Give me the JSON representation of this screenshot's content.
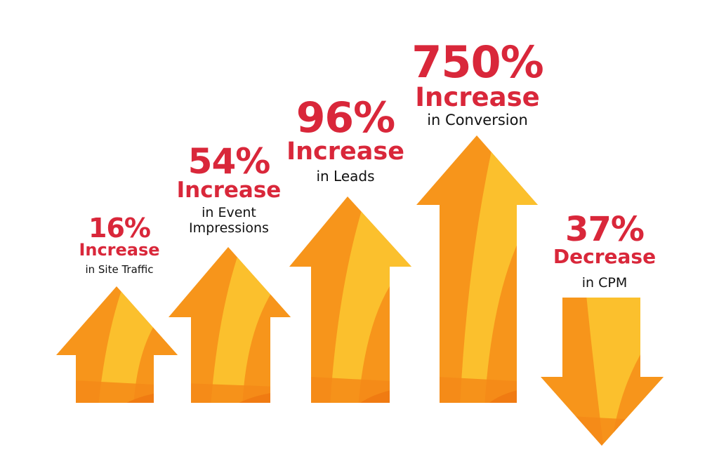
{
  "colors": {
    "accent_red": "#d9273a",
    "orange_dark": "#f07b12",
    "orange": "#f7951b",
    "yellow": "#fbc02d",
    "text_dark": "#111111"
  },
  "stats": [
    {
      "value": "16%",
      "change": "Increase",
      "description": "in Site Traffic",
      "direction": "up"
    },
    {
      "value": "54%",
      "change": "Increase",
      "description": "in Event Impressions",
      "direction": "up"
    },
    {
      "value": "96%",
      "change": "Increase",
      "description": "in Leads",
      "direction": "up"
    },
    {
      "value": "750%",
      "change": "Increase",
      "description": "in Conversion",
      "direction": "up"
    },
    {
      "value": "37%",
      "change": "Decrease",
      "description": "in CPM",
      "direction": "down"
    }
  ]
}
